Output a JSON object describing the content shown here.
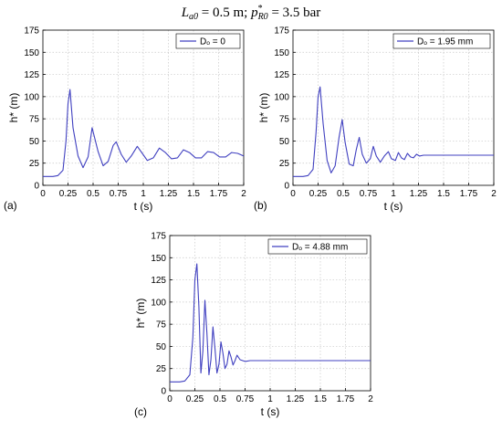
{
  "figure": {
    "title_parts": {
      "L": "L",
      "L_sub": "a0",
      "L_val": " = 0.5 m; ",
      "p": "p",
      "p_sup": "*",
      "p_sub": "R0",
      "p_val": " = 3.5 bar"
    }
  },
  "chart_data": [
    {
      "type": "line",
      "panel_label": "(a)",
      "xlabel": "t (s)",
      "ylabel": "h* (m)",
      "xlim": [
        0,
        2
      ],
      "ylim": [
        0,
        175
      ],
      "xticks": [
        "0",
        "0.25",
        "0.5",
        "0.75",
        "1",
        "1.25",
        "1.5",
        "1.75",
        "2"
      ],
      "yticks": [
        "0",
        "25",
        "50",
        "75",
        "100",
        "125",
        "150",
        "175"
      ],
      "grid": true,
      "legend_position": "top-right",
      "series": [
        {
          "name": "Dₒ = 0",
          "color": "#4040c0",
          "x": [
            0,
            0.1,
            0.15,
            0.2,
            0.23,
            0.25,
            0.27,
            0.3,
            0.35,
            0.4,
            0.45,
            0.49,
            0.55,
            0.6,
            0.65,
            0.7,
            0.73,
            0.78,
            0.83,
            0.88,
            0.94,
            0.99,
            1.04,
            1.1,
            1.16,
            1.22,
            1.28,
            1.34,
            1.4,
            1.46,
            1.52,
            1.58,
            1.64,
            1.7,
            1.76,
            1.82,
            1.88,
            1.94,
            2.0
          ],
          "y": [
            10,
            10,
            11,
            17,
            50,
            92,
            108,
            65,
            33,
            20,
            32,
            65,
            38,
            22,
            27,
            45,
            49,
            35,
            26,
            33,
            44,
            36,
            28,
            31,
            42,
            37,
            30,
            31,
            40,
            37,
            31,
            31,
            38,
            37,
            32,
            32,
            37,
            36,
            33
          ]
        }
      ]
    },
    {
      "type": "line",
      "panel_label": "(b)",
      "xlabel": "t (s)",
      "ylabel": "h* (m)",
      "xlim": [
        0,
        2
      ],
      "ylim": [
        0,
        175
      ],
      "xticks": [
        "0",
        "0.25",
        "0.5",
        "0.75",
        "1",
        "1.25",
        "1.5",
        "1.75",
        "2"
      ],
      "yticks": [
        "0",
        "25",
        "50",
        "75",
        "100",
        "125",
        "150",
        "175"
      ],
      "grid": true,
      "legend_position": "top-right",
      "series": [
        {
          "name": "Dₒ = 1.95 mm",
          "color": "#4040c0",
          "x": [
            0,
            0.1,
            0.15,
            0.2,
            0.23,
            0.25,
            0.27,
            0.3,
            0.34,
            0.38,
            0.42,
            0.46,
            0.49,
            0.52,
            0.56,
            0.6,
            0.63,
            0.66,
            0.69,
            0.73,
            0.77,
            0.8,
            0.83,
            0.87,
            0.91,
            0.95,
            0.98,
            1.02,
            1.05,
            1.08,
            1.11,
            1.14,
            1.17,
            1.2,
            1.23,
            1.26,
            1.3,
            1.35,
            1.5,
            1.75,
            2.0
          ],
          "y": [
            10,
            10,
            11,
            18,
            60,
            100,
            111,
            70,
            28,
            14,
            22,
            55,
            74,
            48,
            24,
            22,
            40,
            54,
            35,
            25,
            30,
            44,
            33,
            26,
            33,
            38,
            30,
            28,
            37,
            31,
            29,
            36,
            32,
            31,
            35,
            33,
            34,
            34,
            34,
            34,
            34
          ]
        }
      ]
    },
    {
      "type": "line",
      "panel_label": "(c)",
      "xlabel": "t (s)",
      "ylabel": "h* (m)",
      "xlim": [
        0,
        2
      ],
      "ylim": [
        0,
        175
      ],
      "xticks": [
        "0",
        "0.25",
        "0.5",
        "0.75",
        "1",
        "1.25",
        "1.5",
        "1.75",
        "2"
      ],
      "yticks": [
        "0",
        "25",
        "50",
        "75",
        "100",
        "125",
        "150",
        "175"
      ],
      "grid": true,
      "legend_position": "top-right",
      "series": [
        {
          "name": "Dₒ = 4.88 mm",
          "color": "#4040c0",
          "x": [
            0,
            0.1,
            0.15,
            0.2,
            0.23,
            0.25,
            0.27,
            0.29,
            0.31,
            0.33,
            0.35,
            0.37,
            0.39,
            0.41,
            0.43,
            0.45,
            0.47,
            0.49,
            0.51,
            0.53,
            0.55,
            0.57,
            0.59,
            0.61,
            0.63,
            0.65,
            0.67,
            0.7,
            0.75,
            0.8,
            1.0,
            1.5,
            2.0
          ],
          "y": [
            10,
            10,
            11,
            18,
            60,
            125,
            143,
            95,
            20,
            45,
            102,
            65,
            18,
            35,
            72,
            48,
            20,
            30,
            55,
            42,
            25,
            30,
            45,
            38,
            29,
            34,
            40,
            35,
            33,
            34,
            34,
            34,
            34
          ]
        }
      ]
    }
  ]
}
